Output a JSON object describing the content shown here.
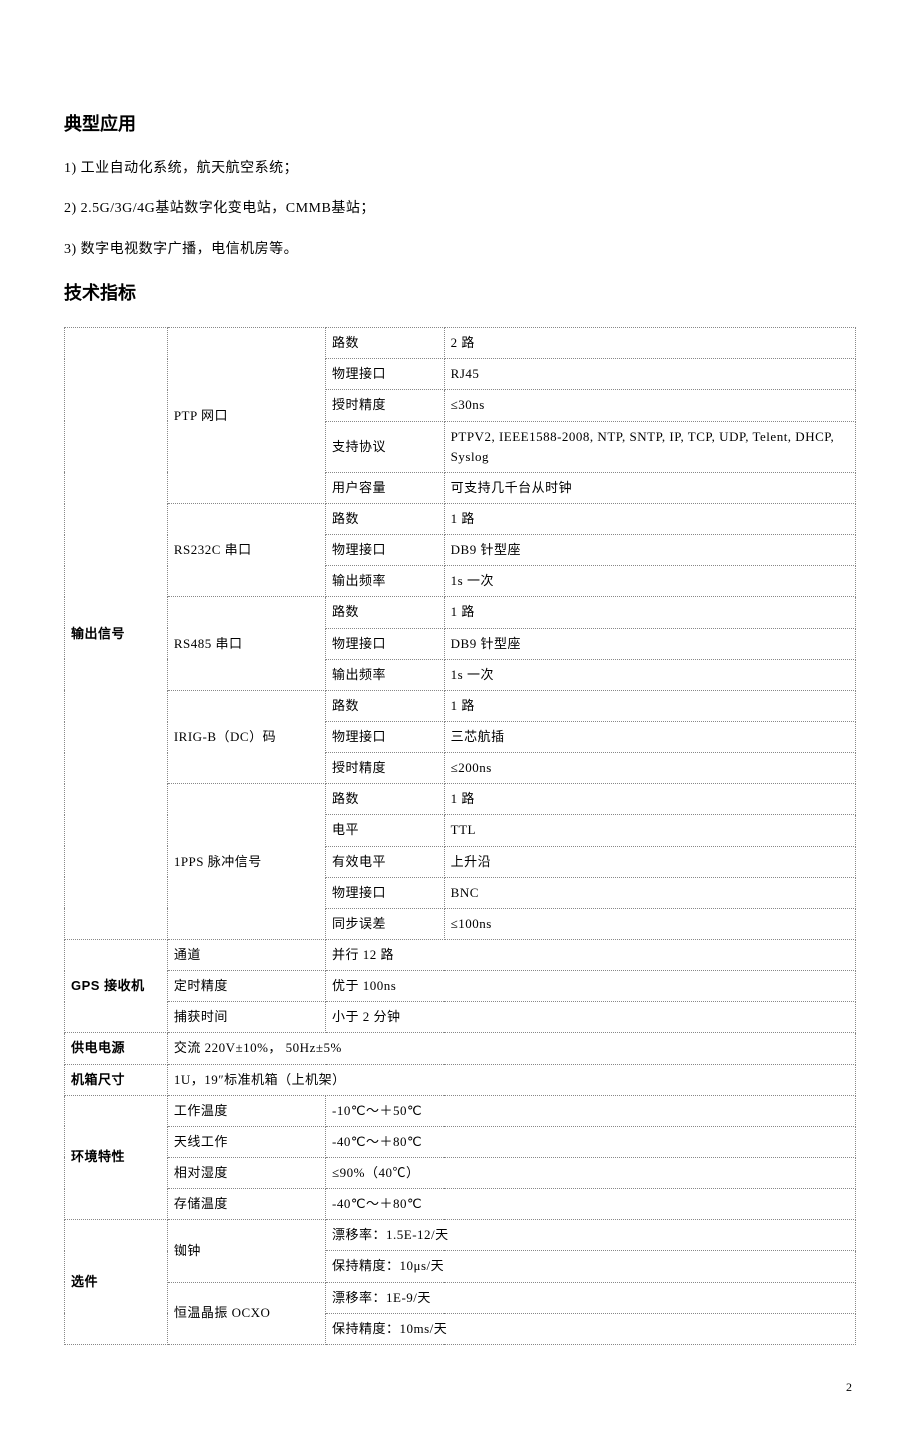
{
  "headings": {
    "applications": "典型应用",
    "specifications": "技术指标"
  },
  "applications": [
    "1)  工业自动化系统，航天航空系统；",
    "2)  2.5G/3G/4G基站数字化变电站，CMMB基站；",
    "3)  数字电视数字广播，电信机房等。"
  ],
  "table": {
    "columns": {
      "a_width": "13%",
      "b_width": "20%",
      "c_width": "15%",
      "d_width": "52%"
    },
    "output_signals": {
      "label": "输出信号",
      "ptp": {
        "label": "PTP 网口",
        "rows": [
          [
            "路数",
            "2 路"
          ],
          [
            "物理接口",
            "RJ45"
          ],
          [
            "授时精度",
            "≤30ns"
          ],
          [
            "支持协议",
            "PTPV2, IEEE1588-2008, NTP, SNTP, IP, TCP, UDP, Telent, DHCP, Syslog"
          ],
          [
            "用户容量",
            "可支持几千台从时钟"
          ]
        ]
      },
      "rs232c": {
        "label": "RS232C 串口",
        "rows": [
          [
            "路数",
            "1 路"
          ],
          [
            "物理接口",
            "DB9 针型座"
          ],
          [
            "输出频率",
            "1s 一次"
          ]
        ]
      },
      "rs485": {
        "label": "RS485 串口",
        "rows": [
          [
            "路数",
            "1 路"
          ],
          [
            "物理接口",
            "DB9 针型座"
          ],
          [
            "输出频率",
            "1s 一次"
          ]
        ]
      },
      "irigb": {
        "label": "IRIG-B（DC）码",
        "rows": [
          [
            "路数",
            "1 路"
          ],
          [
            "物理接口",
            "三芯航插"
          ],
          [
            "授时精度",
            "≤200ns"
          ]
        ]
      },
      "pps": {
        "label": "1PPS 脉冲信号",
        "rows": [
          [
            "路数",
            "1 路"
          ],
          [
            "电平",
            "TTL"
          ],
          [
            "有效电平",
            "上升沿"
          ],
          [
            "物理接口",
            "BNC"
          ],
          [
            "同步误差",
            "≤100ns"
          ]
        ]
      }
    },
    "gps": {
      "label": "GPS 接收机",
      "rows": [
        [
          "通道",
          "并行 12 路"
        ],
        [
          "定时精度",
          "优于 100ns"
        ],
        [
          "捕获时间",
          "小于 2 分钟"
        ]
      ]
    },
    "power": {
      "label": "供电电源",
      "value": "交流 220V±10%，  50Hz±5%"
    },
    "chassis": {
      "label": "机箱尺寸",
      "value": "1U，19″标准机箱（上机架）"
    },
    "env": {
      "label": "环境特性",
      "rows": [
        [
          "工作温度",
          "-10℃～＋50℃"
        ],
        [
          "天线工作",
          "-40℃～＋80℃"
        ],
        [
          "相对湿度",
          "≤90%（40℃）"
        ],
        [
          "存储温度",
          "-40℃～＋80℃"
        ]
      ]
    },
    "options": {
      "label": "选件",
      "rb": {
        "label": "铷钟",
        "l1": "漂移率：1.5E-12/天",
        "l2": "保持精度：10μs/天"
      },
      "ocxo": {
        "label": "恒温晶振 OCXO",
        "l1": "漂移率：1E-9/天",
        "l2": "保持精度：10ms/天"
      }
    }
  },
  "page_number": "2"
}
